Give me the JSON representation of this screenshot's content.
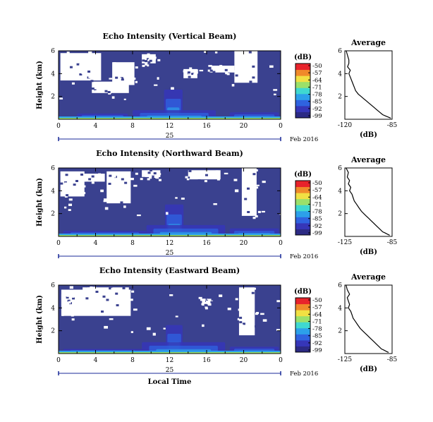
{
  "chart_data": [
    {
      "type": "heatmap",
      "title": "Echo Intensity (Vertical Beam)",
      "ylabel": "Height (km)",
      "x_ticks": [
        "0",
        "4",
        "8",
        "12",
        "16",
        "20",
        "0"
      ],
      "y_ticks": [
        "6",
        "4",
        "2"
      ],
      "xlim": [
        0,
        24
      ],
      "ylim": [
        0,
        6
      ],
      "date_label": "25",
      "date_suffix": "Feb 2016",
      "colorbar": {
        "title": "(dB)",
        "ticks": [
          "-50",
          "-57",
          "-64",
          "-71",
          "-78",
          "-85",
          "-92",
          "-99"
        ]
      },
      "profile": {
        "title": "Average",
        "xlabel": "(dB)",
        "x_ticks": [
          "-120",
          "-85"
        ],
        "xlim": [
          -120,
          -85
        ],
        "y_ticks": [
          "6",
          "4",
          "2"
        ],
        "x": [
          -119,
          -118,
          -117,
          -117,
          -118,
          -116,
          -117,
          -116,
          -115,
          -114,
          -113,
          -112,
          -110,
          -108,
          -106,
          -104,
          -102,
          -100,
          -98,
          -96,
          -94,
          -92,
          -90,
          -88,
          -86
        ],
        "y": [
          6.0,
          5.6,
          5.2,
          4.9,
          4.6,
          4.3,
          4.0,
          3.7,
          3.4,
          3.1,
          2.8,
          2.5,
          2.2,
          2.0,
          1.8,
          1.6,
          1.4,
          1.2,
          1.0,
          0.8,
          0.6,
          0.4,
          0.3,
          0.2,
          0.1
        ]
      },
      "gaps": [
        [
          0.2,
          4.6,
          3.4,
          5.8
        ],
        [
          5.8,
          8.2,
          3.0,
          5.0
        ],
        [
          3.6,
          7.6,
          2.3,
          3.3
        ],
        [
          19.0,
          21.5,
          3.2,
          6.0
        ],
        [
          9.0,
          10.5,
          4.9,
          5.7
        ],
        [
          13.5,
          15.0,
          3.6,
          4.4
        ],
        [
          16.5,
          19.0,
          4.1,
          4.7
        ]
      ],
      "echo": [
        [
          11.4,
          13.4,
          0.3,
          2.6
        ],
        [
          2.0,
          7.5,
          0.1,
          0.5
        ],
        [
          8.0,
          17.0,
          0.1,
          0.8
        ],
        [
          18.5,
          23.8,
          0.1,
          0.6
        ]
      ]
    },
    {
      "type": "heatmap",
      "title": "Echo Intensity (Northward Beam)",
      "ylabel": "Height (km)",
      "x_ticks": [
        "0",
        "4",
        "8",
        "12",
        "16",
        "20",
        "0"
      ],
      "y_ticks": [
        "6",
        "4",
        "2"
      ],
      "xlim": [
        0,
        24
      ],
      "ylim": [
        0,
        6
      ],
      "date_label": "25",
      "date_suffix": "Feb 2016",
      "colorbar": {
        "title": "(dB)",
        "ticks": [
          "-50",
          "-57",
          "-64",
          "-71",
          "-78",
          "-85",
          "-92",
          "-99"
        ]
      },
      "profile": {
        "title": "Average",
        "xlabel": "(dB)",
        "x_ticks": [
          "-125",
          "-85"
        ],
        "xlim": [
          -125,
          -85
        ],
        "y_ticks": [
          "6",
          "4",
          "2"
        ],
        "x": [
          -124,
          -122,
          -123,
          -121,
          -122,
          -120,
          -121,
          -119,
          -118,
          -117,
          -115,
          -113,
          -111,
          -109,
          -107,
          -105,
          -103,
          -101,
          -99,
          -97,
          -95,
          -93,
          -91,
          -89,
          -87
        ],
        "y": [
          6.0,
          5.6,
          5.2,
          4.9,
          4.6,
          4.3,
          4.0,
          3.7,
          3.4,
          3.1,
          2.8,
          2.5,
          2.2,
          2.0,
          1.8,
          1.6,
          1.4,
          1.2,
          1.0,
          0.8,
          0.6,
          0.4,
          0.3,
          0.2,
          0.1
        ]
      },
      "gaps": [
        [
          0.2,
          2.8,
          3.5,
          5.7
        ],
        [
          5.2,
          7.8,
          2.9,
          5.7
        ],
        [
          1.5,
          5.0,
          4.8,
          5.5
        ],
        [
          19.8,
          21.4,
          1.8,
          6.0
        ],
        [
          9.0,
          11.0,
          5.2,
          5.8
        ],
        [
          14.0,
          17.5,
          5.0,
          5.8
        ]
      ],
      "echo": [
        [
          11.5,
          13.5,
          0.3,
          2.8
        ],
        [
          0.5,
          9.5,
          0.1,
          0.5
        ],
        [
          9.5,
          18.0,
          0.1,
          1.0
        ],
        [
          18.5,
          23.8,
          0.1,
          0.7
        ]
      ]
    },
    {
      "type": "heatmap",
      "title": "Echo Intensity (Eastward Beam)",
      "ylabel": "Height (km)",
      "x_ticks": [
        "0",
        "4",
        "8",
        "12",
        "16",
        "20",
        "0"
      ],
      "y_ticks": [
        "6",
        "4",
        "2"
      ],
      "xlim": [
        0,
        24
      ],
      "ylim": [
        0,
        6
      ],
      "date_label": "25",
      "date_suffix": "Feb 2016",
      "xlabel": "Local Time",
      "colorbar": {
        "title": "(dB)",
        "ticks": [
          "-50",
          "-57",
          "-64",
          "-71",
          "-78",
          "-85",
          "-92",
          "-99"
        ]
      },
      "profile": {
        "title": "Average",
        "xlabel": "(dB)",
        "x_ticks": [
          "-125",
          "-85"
        ],
        "xlim": [
          -125,
          -85
        ],
        "y_ticks": [
          "6",
          "4",
          "2"
        ],
        "x": [
          -124,
          -123,
          -121,
          -123,
          -122,
          -121,
          -122,
          -120,
          -119,
          -118,
          -116,
          -114,
          -112,
          -110,
          -108,
          -106,
          -104,
          -102,
          -100,
          -98,
          -96,
          -94,
          -92,
          -90,
          -88
        ],
        "y": [
          6.0,
          5.6,
          5.2,
          4.9,
          4.6,
          4.3,
          4.0,
          3.7,
          3.4,
          3.1,
          2.8,
          2.5,
          2.2,
          2.0,
          1.8,
          1.6,
          1.4,
          1.2,
          1.0,
          0.8,
          0.6,
          0.4,
          0.3,
          0.2,
          0.1
        ]
      },
      "gaps": [
        [
          0.3,
          7.8,
          3.3,
          5.6
        ],
        [
          0.3,
          2.6,
          4.2,
          5.2
        ],
        [
          19.5,
          21.2,
          1.6,
          5.8
        ],
        [
          2.6,
          7.6,
          5.4,
          5.8
        ],
        [
          15.5,
          16.5,
          4.2,
          4.8
        ]
      ],
      "echo": [
        [
          11.6,
          13.4,
          0.3,
          2.5
        ],
        [
          0.5,
          9.0,
          0.1,
          0.4
        ],
        [
          9.0,
          18.0,
          0.1,
          1.0
        ],
        [
          18.5,
          23.8,
          0.1,
          0.6
        ]
      ]
    }
  ],
  "colors": {
    "background_fill": "#3a418f",
    "gap": "#ffffff",
    "scale": [
      "#2c2a84",
      "#3636b8",
      "#2f63e0",
      "#2ca0ea",
      "#3fd8d0",
      "#9be06a",
      "#f1e043",
      "#f08a2a",
      "#e8232b"
    ]
  }
}
